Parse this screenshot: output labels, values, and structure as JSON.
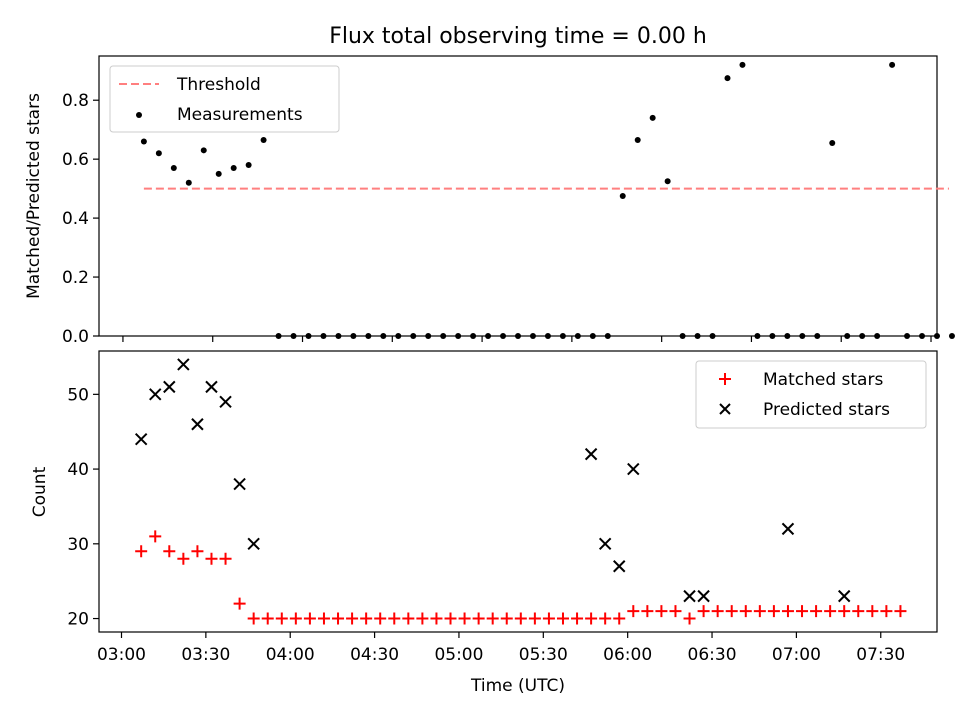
{
  "chart_data": [
    {
      "type": "scatter",
      "title": "Flux total observing time = 0.00 h",
      "ylabel": "Matched/Predicted stars",
      "xlabel": "",
      "xlim": [
        -8,
        272
      ],
      "ylim": [
        0,
        0.95
      ],
      "xticks": [
        0,
        30,
        60,
        90,
        120,
        150,
        180,
        210,
        240,
        270
      ],
      "xtick_labels": [],
      "yticks": [
        0.0,
        0.2,
        0.4,
        0.6,
        0.8
      ],
      "ytick_labels": [
        "0.0",
        "0.2",
        "0.4",
        "0.6",
        "0.8"
      ],
      "grid": false,
      "legend": {
        "placement": "upper-left",
        "entries": [
          "Threshold",
          "Measurements"
        ]
      },
      "series": [
        {
          "name": "Threshold",
          "style": "dashed-line",
          "color": "#ff7f7f",
          "points": [
            [
              7,
              0.5
            ],
            [
              276,
              0.5
            ]
          ]
        },
        {
          "name": "Measurements",
          "style": "dot",
          "color": "#000000",
          "points": [
            [
              7,
              0.66
            ],
            [
              12,
              0.62
            ],
            [
              17,
              0.57
            ],
            [
              22,
              0.52
            ],
            [
              27,
              0.63
            ],
            [
              32,
              0.55
            ],
            [
              37,
              0.57
            ],
            [
              42,
              0.58
            ],
            [
              47,
              0.665
            ],
            [
              52,
              0
            ],
            [
              57,
              0
            ],
            [
              62,
              0
            ],
            [
              67,
              0
            ],
            [
              72,
              0
            ],
            [
              77,
              0
            ],
            [
              82,
              0
            ],
            [
              87,
              0
            ],
            [
              92,
              0
            ],
            [
              97,
              0
            ],
            [
              102,
              0
            ],
            [
              107,
              0
            ],
            [
              112,
              0
            ],
            [
              117,
              0
            ],
            [
              122,
              0
            ],
            [
              127,
              0
            ],
            [
              132,
              0
            ],
            [
              137,
              0
            ],
            [
              142,
              0
            ],
            [
              147,
              0
            ],
            [
              152,
              0
            ],
            [
              157,
              0
            ],
            [
              162,
              0
            ],
            [
              167,
              0.475
            ],
            [
              172,
              0.665
            ],
            [
              177,
              0.74
            ],
            [
              182,
              0.525
            ],
            [
              187,
              0
            ],
            [
              192,
              0
            ],
            [
              197,
              0
            ],
            [
              202,
              0.875
            ],
            [
              207,
              0.92
            ],
            [
              212,
              0
            ],
            [
              217,
              0
            ],
            [
              222,
              0
            ],
            [
              227,
              0
            ],
            [
              232,
              0
            ],
            [
              237,
              0.655
            ],
            [
              242,
              0
            ],
            [
              247,
              0
            ],
            [
              252,
              0
            ],
            [
              257,
              0.92
            ],
            [
              262,
              0
            ],
            [
              267,
              0
            ],
            [
              272,
              0
            ],
            [
              277,
              0
            ]
          ]
        }
      ]
    },
    {
      "type": "scatter",
      "title": "",
      "xlabel": "Time (UTC)",
      "ylabel": "Count",
      "xlim": [
        -8,
        290
      ],
      "ylim": [
        18.2,
        55.8
      ],
      "xticks": [
        0,
        30,
        60,
        90,
        120,
        150,
        180,
        210,
        240,
        270
      ],
      "xtick_labels": [
        "03:00",
        "03:30",
        "04:00",
        "04:30",
        "05:00",
        "05:30",
        "06:00",
        "06:30",
        "07:00",
        "07:30"
      ],
      "yticks": [
        20,
        30,
        40,
        50
      ],
      "ytick_labels": [
        "20",
        "30",
        "40",
        "50"
      ],
      "grid": false,
      "legend": {
        "placement": "upper-right",
        "entries": [
          "Matched stars",
          "Predicted stars"
        ]
      },
      "series": [
        {
          "name": "Matched stars",
          "marker": "plus",
          "color": "#ff0000",
          "points": [
            [
              7,
              29
            ],
            [
              12,
              31
            ],
            [
              17,
              29
            ],
            [
              22,
              28
            ],
            [
              27,
              29
            ],
            [
              32,
              28
            ],
            [
              37,
              28
            ],
            [
              42,
              22
            ],
            [
              47,
              20
            ],
            [
              52,
              20
            ],
            [
              57,
              20
            ],
            [
              62,
              20
            ],
            [
              67,
              20
            ],
            [
              72,
              20
            ],
            [
              77,
              20
            ],
            [
              82,
              20
            ],
            [
              87,
              20
            ],
            [
              92,
              20
            ],
            [
              97,
              20
            ],
            [
              102,
              20
            ],
            [
              107,
              20
            ],
            [
              112,
              20
            ],
            [
              117,
              20
            ],
            [
              122,
              20
            ],
            [
              127,
              20
            ],
            [
              132,
              20
            ],
            [
              137,
              20
            ],
            [
              142,
              20
            ],
            [
              147,
              20
            ],
            [
              152,
              20
            ],
            [
              157,
              20
            ],
            [
              162,
              20
            ],
            [
              167,
              20
            ],
            [
              172,
              20
            ],
            [
              177,
              20
            ],
            [
              182,
              21
            ],
            [
              187,
              21
            ],
            [
              192,
              21
            ],
            [
              197,
              21
            ],
            [
              202,
              20
            ],
            [
              207,
              21
            ],
            [
              212,
              21
            ],
            [
              217,
              21
            ],
            [
              222,
              21
            ],
            [
              227,
              21
            ],
            [
              232,
              21
            ],
            [
              237,
              21
            ],
            [
              242,
              21
            ],
            [
              247,
              21
            ],
            [
              252,
              21
            ],
            [
              257,
              21
            ],
            [
              262,
              21
            ],
            [
              267,
              21
            ],
            [
              272,
              21
            ],
            [
              277,
              21
            ]
          ]
        },
        {
          "name": "Predicted stars",
          "marker": "x",
          "color": "#000000",
          "points": [
            [
              7,
              44
            ],
            [
              12,
              50
            ],
            [
              17,
              51
            ],
            [
              22,
              54
            ],
            [
              27,
              46
            ],
            [
              32,
              51
            ],
            [
              37,
              49
            ],
            [
              42,
              38
            ],
            [
              47,
              30
            ],
            [
              167,
              42
            ],
            [
              172,
              30
            ],
            [
              177,
              27
            ],
            [
              182,
              40
            ],
            [
              202,
              23
            ],
            [
              207,
              23
            ],
            [
              237,
              32
            ],
            [
              257,
              23
            ]
          ]
        }
      ]
    }
  ]
}
